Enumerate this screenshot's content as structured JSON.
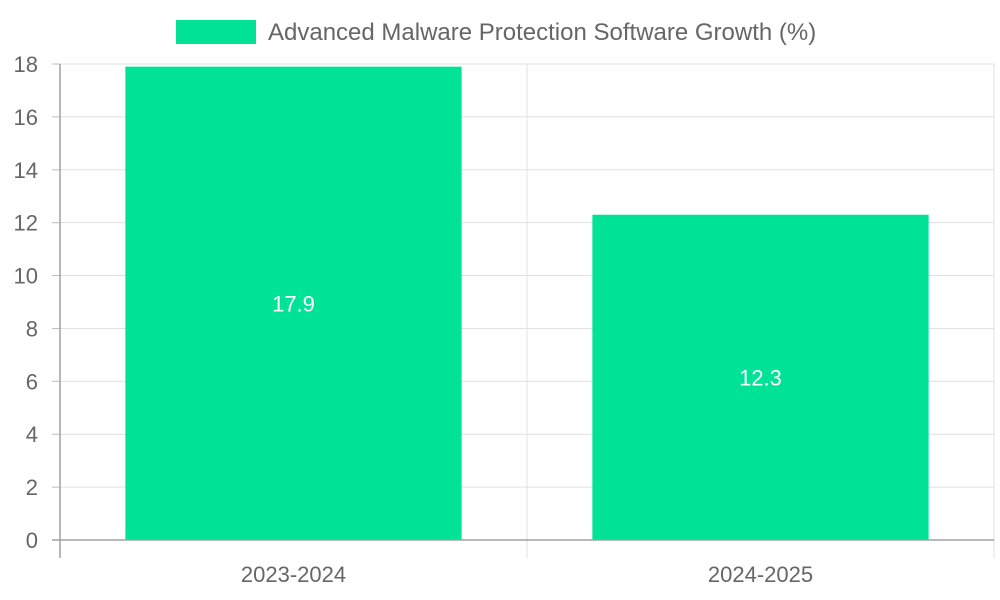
{
  "chart_data": {
    "type": "bar",
    "categories": [
      "2023-2024",
      "2024-2025"
    ],
    "series": [
      {
        "name": "Advanced Malware Protection Software Growth (%)",
        "values": [
          17.9,
          12.3
        ],
        "color": "#00e396"
      }
    ],
    "ylim": [
      0,
      18
    ],
    "yticks": [
      0,
      2,
      4,
      6,
      8,
      10,
      12,
      14,
      16,
      18
    ],
    "grid": true,
    "legend_position": "top-center",
    "data_labels": [
      "17.9",
      "12.3"
    ]
  }
}
